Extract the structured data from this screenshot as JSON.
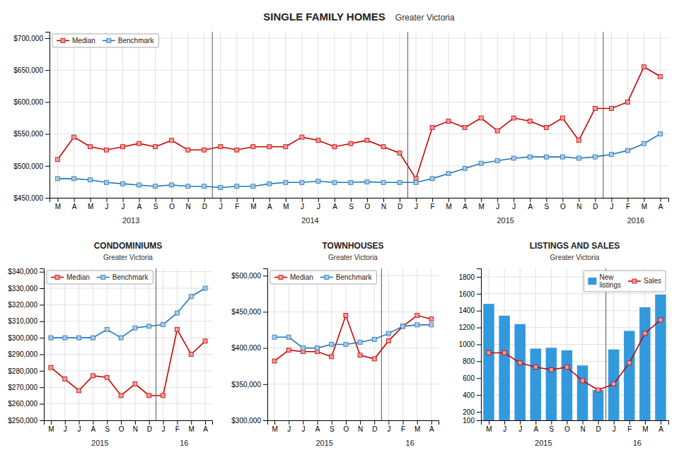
{
  "chart_data": [
    {
      "type": "line",
      "title": "SINGLE FAMILY HOMES",
      "subtitle": "Greater Victoria",
      "categories": [
        "M",
        "A",
        "M",
        "J",
        "J",
        "A",
        "S",
        "O",
        "N",
        "D",
        "J",
        "F",
        "M",
        "A",
        "M",
        "J",
        "J",
        "A",
        "S",
        "O",
        "N",
        "D",
        "J",
        "F",
        "M",
        "A",
        "M",
        "J",
        "J",
        "A",
        "S",
        "O",
        "N",
        "D",
        "J",
        "F",
        "M",
        "A"
      ],
      "series": [
        {
          "name": "Median",
          "color": "#cc0000",
          "marker": "square",
          "values": [
            510000,
            545000,
            530000,
            525000,
            530000,
            535000,
            530000,
            540000,
            525000,
            525000,
            530000,
            525000,
            530000,
            530000,
            530000,
            545000,
            540000,
            530000,
            535000,
            540000,
            530000,
            520000,
            480000,
            560000,
            570000,
            560000,
            575000,
            555000,
            575000,
            570000,
            560000,
            575000,
            540000,
            590000,
            590000,
            600000,
            655000,
            640000
          ]
        },
        {
          "name": "Benchmark",
          "color": "#2277bb",
          "marker": "square",
          "values": [
            480000,
            480000,
            478000,
            474000,
            472000,
            470000,
            468000,
            470000,
            468000,
            468000,
            466000,
            468000,
            468000,
            472000,
            474000,
            474000,
            476000,
            474000,
            474000,
            475000,
            474000,
            474000,
            474000,
            480000,
            488000,
            496000,
            504000,
            508000,
            512000,
            514000,
            514000,
            514000,
            512000,
            514000,
            518000,
            524000,
            535000,
            550000
          ]
        }
      ],
      "ylim": [
        450000,
        710000
      ],
      "yticks": [
        {
          "value": 450000,
          "label": "$450,000"
        },
        {
          "value": 500000,
          "label": "$500,000"
        },
        {
          "value": 550000,
          "label": "$550,000"
        },
        {
          "value": 600000,
          "label": "$600,000"
        },
        {
          "value": 650000,
          "label": "$650,000"
        },
        {
          "value": 700000,
          "label": "$700,000"
        }
      ],
      "grid": true,
      "legend": "upper left",
      "vlines": [
        9.5,
        21.5,
        33.5
      ],
      "annotations": [
        {
          "text": "2013",
          "x": 4.5
        },
        {
          "text": "2014",
          "x": 15.5
        },
        {
          "text": "2015",
          "x": 27.5
        },
        {
          "text": "2016",
          "x": 35.5
        }
      ]
    },
    {
      "type": "line",
      "title": "CONDOMINIUMS",
      "subtitle": "Greater Victoria",
      "categories": [
        "M",
        "J",
        "J",
        "A",
        "S",
        "O",
        "N",
        "D",
        "J",
        "F",
        "M",
        "A"
      ],
      "series": [
        {
          "name": "Median",
          "color": "#cc0000",
          "marker": "square",
          "values": [
            282000,
            275000,
            268000,
            277000,
            276000,
            265000,
            272000,
            265000,
            265000,
            305000,
            290000,
            298000
          ]
        },
        {
          "name": "Benchmark",
          "color": "#2277bb",
          "marker": "square",
          "values": [
            300000,
            300000,
            300000,
            300000,
            305000,
            300000,
            306000,
            307000,
            308000,
            315000,
            325000,
            330000
          ]
        }
      ],
      "ylim": [
        250000,
        342000
      ],
      "yticks": [
        {
          "value": 250000,
          "label": "$250,000"
        },
        {
          "value": 260000,
          "label": "$260,000"
        },
        {
          "value": 270000,
          "label": "$270,000"
        },
        {
          "value": 280000,
          "label": "$280,000"
        },
        {
          "value": 290000,
          "label": "$290,000"
        },
        {
          "value": 300000,
          "label": "$300,000"
        },
        {
          "value": 310000,
          "label": "$310,000"
        },
        {
          "value": 320000,
          "label": "$320,000"
        },
        {
          "value": 330000,
          "label": "$330,000"
        },
        {
          "value": 340000,
          "label": "$340,000"
        }
      ],
      "grid": true,
      "legend": "upper left",
      "vlines": [
        7.5
      ],
      "annotations": [
        {
          "text": "2015",
          "x": 3.5
        },
        {
          "text": "16",
          "x": 9.5
        }
      ]
    },
    {
      "type": "line",
      "title": "TOWNHOUSES",
      "subtitle": "Greater Victoria",
      "categories": [
        "M",
        "J",
        "J",
        "A",
        "S",
        "O",
        "N",
        "D",
        "J",
        "F",
        "M",
        "A"
      ],
      "series": [
        {
          "name": "Median",
          "color": "#cc0000",
          "marker": "square",
          "values": [
            382000,
            397000,
            395000,
            395000,
            388000,
            445000,
            390000,
            385000,
            410000,
            430000,
            445000,
            440000
          ]
        },
        {
          "name": "Benchmark",
          "color": "#2277bb",
          "marker": "square",
          "values": [
            415000,
            415000,
            400000,
            400000,
            405000,
            405000,
            408000,
            412000,
            420000,
            430000,
            432000,
            432000
          ]
        }
      ],
      "ylim": [
        300000,
        510000
      ],
      "yticks": [
        {
          "value": 300000,
          "label": "$300,000"
        },
        {
          "value": 350000,
          "label": "$350,000"
        },
        {
          "value": 400000,
          "label": "$400,000"
        },
        {
          "value": 450000,
          "label": "$450,000"
        },
        {
          "value": 500000,
          "label": "$500,000"
        }
      ],
      "grid": true,
      "legend": "upper left",
      "vlines": [
        7.5
      ],
      "annotations": [
        {
          "text": "2015",
          "x": 3.5
        },
        {
          "text": "16",
          "x": 9.5
        }
      ]
    },
    {
      "type": "bar",
      "title": "LISTINGS AND SALES",
      "subtitle": "Greater Victoria",
      "categories": [
        "M",
        "J",
        "J",
        "A",
        "S",
        "O",
        "N",
        "D",
        "J",
        "F",
        "M",
        "A"
      ],
      "series": [
        {
          "name": "New\nlistings",
          "type": "bar",
          "color": "#3399dd",
          "values": [
            1480,
            1340,
            1240,
            950,
            960,
            930,
            750,
            460,
            940,
            1160,
            1440,
            1590
          ]
        },
        {
          "name": "Sales",
          "type": "line",
          "color": "#cc0000",
          "marker": "square",
          "values": [
            900,
            900,
            780,
            730,
            700,
            730,
            570,
            460,
            530,
            780,
            1130,
            1290
          ]
        }
      ],
      "ylim": [
        100,
        1900
      ],
      "yticks": [
        100,
        200,
        400,
        600,
        800,
        1000,
        1200,
        1400,
        1600,
        1800
      ],
      "grid": true,
      "legend": "upper right",
      "vlines": [
        7.5
      ],
      "annotations": [
        {
          "text": "2015",
          "x": 3.5
        },
        {
          "text": "16",
          "x": 9.5
        }
      ]
    }
  ]
}
